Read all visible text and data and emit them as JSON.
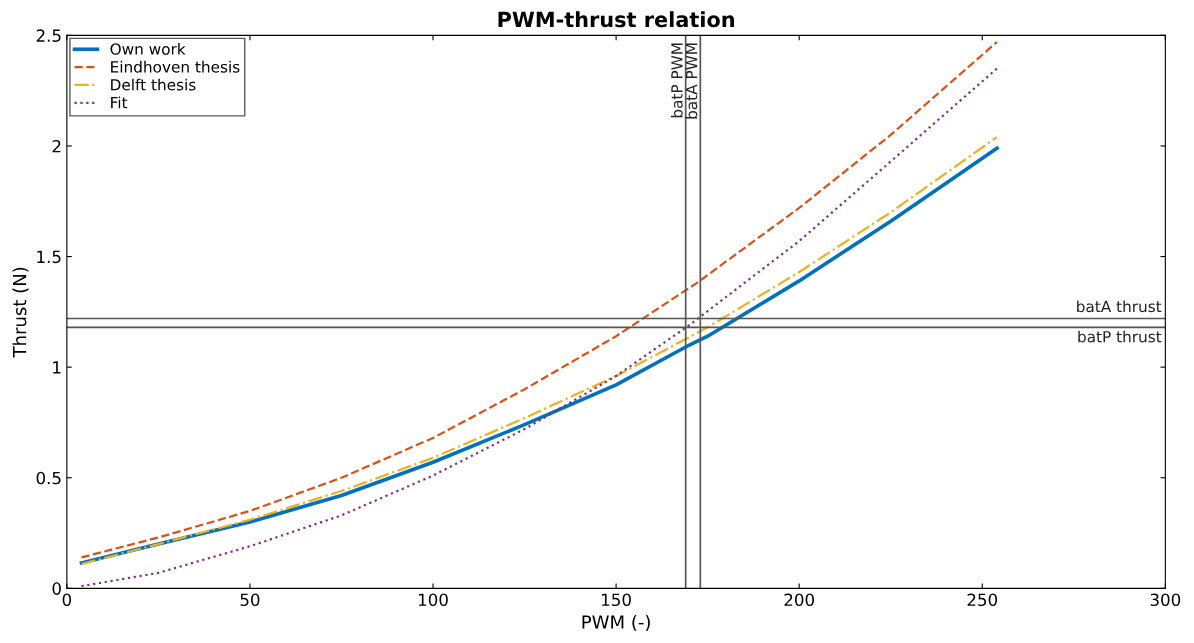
{
  "chart_data": {
    "type": "line",
    "title": "PWM-thrust relation",
    "xlabel": "PWM (-)",
    "ylabel": "Thrust (N)",
    "xlim": [
      0,
      300
    ],
    "xticks": [
      0,
      50,
      100,
      150,
      200,
      250,
      300
    ],
    "ylim": [
      0,
      2.5
    ],
    "yticks": [
      0,
      0.5,
      1,
      1.5,
      2,
      2.5
    ],
    "grid": false,
    "legend": "top left",
    "series": [
      {
        "name": "Own work",
        "color": "#0072bd",
        "line_style": "solid",
        "x": [
          4,
          25,
          50,
          75,
          100,
          125,
          150,
          170,
          175,
          200,
          225,
          254
        ],
        "values": [
          0.115,
          0.2,
          0.3,
          0.42,
          0.57,
          0.74,
          0.92,
          1.1,
          1.14,
          1.39,
          1.66,
          1.99
        ]
      },
      {
        "name": "Eindhoven thesis",
        "color": "#d95319",
        "line_style": "dashed",
        "x": [
          4,
          25,
          50,
          75,
          100,
          125,
          150,
          172,
          200,
          225,
          254
        ],
        "values": [
          0.14,
          0.23,
          0.35,
          0.5,
          0.68,
          0.9,
          1.14,
          1.38,
          1.72,
          2.05,
          2.47
        ]
      },
      {
        "name": "Delft thesis",
        "color": "#edb120",
        "line_style": "dashdot",
        "x": [
          4,
          25,
          50,
          75,
          100,
          125,
          150,
          175,
          200,
          225,
          254
        ],
        "values": [
          0.11,
          0.2,
          0.31,
          0.44,
          0.59,
          0.77,
          0.96,
          1.18,
          1.43,
          1.7,
          2.04
        ]
      },
      {
        "name": "Fit",
        "color": "#7e2f8e",
        "line_style": "dotted",
        "x": [
          4,
          25,
          50,
          75,
          100,
          125,
          150,
          170,
          200,
          225,
          254
        ],
        "values": [
          0.01,
          0.07,
          0.19,
          0.33,
          0.51,
          0.72,
          0.96,
          1.19,
          1.57,
          1.93,
          2.35
        ]
      }
    ],
    "ref_lines": [
      {
        "axis": "x",
        "value": 169,
        "label": "batP PWM",
        "color": "#555555"
      },
      {
        "axis": "x",
        "value": 173,
        "label": "batA PWM",
        "color": "#555555"
      },
      {
        "axis": "y",
        "value": 1.22,
        "label": "batA thrust",
        "color": "#555555"
      },
      {
        "axis": "y",
        "value": 1.18,
        "label": "batP thrust",
        "color": "#555555"
      }
    ]
  }
}
